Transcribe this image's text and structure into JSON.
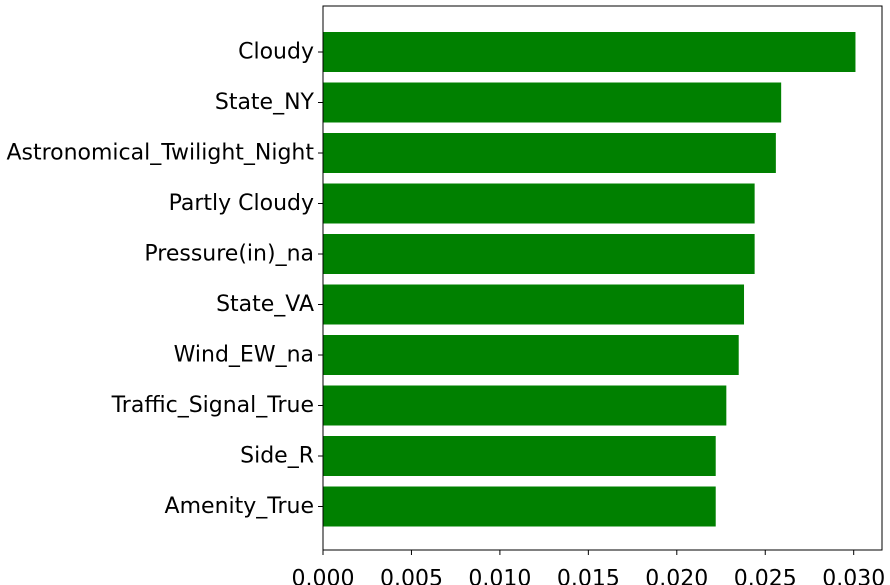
{
  "chart_data": {
    "type": "bar",
    "orientation": "horizontal",
    "title": "",
    "xlabel": "",
    "ylabel": "",
    "categories": [
      "Cloudy",
      "State_NY",
      "Astronomical_Twilight_Night",
      "Partly Cloudy",
      "Pressure(in)_na",
      "State_VA",
      "Wind_EW_na",
      "Traffic_Signal_True",
      "Side_R",
      "Amenity_True"
    ],
    "values": [
      0.0301,
      0.0259,
      0.0256,
      0.0244,
      0.0244,
      0.0238,
      0.0235,
      0.0228,
      0.0222,
      0.0222
    ],
    "xlim": [
      0.0,
      0.0316
    ],
    "xticks": [
      "0.000",
      "0.005",
      "0.010",
      "0.015",
      "0.020",
      "0.025",
      "0.030"
    ],
    "xtick_values": [
      0.0,
      0.005,
      0.01,
      0.015,
      0.02,
      0.025,
      0.03
    ],
    "bar_color": "#008000",
    "grid": false,
    "legend": "none"
  }
}
